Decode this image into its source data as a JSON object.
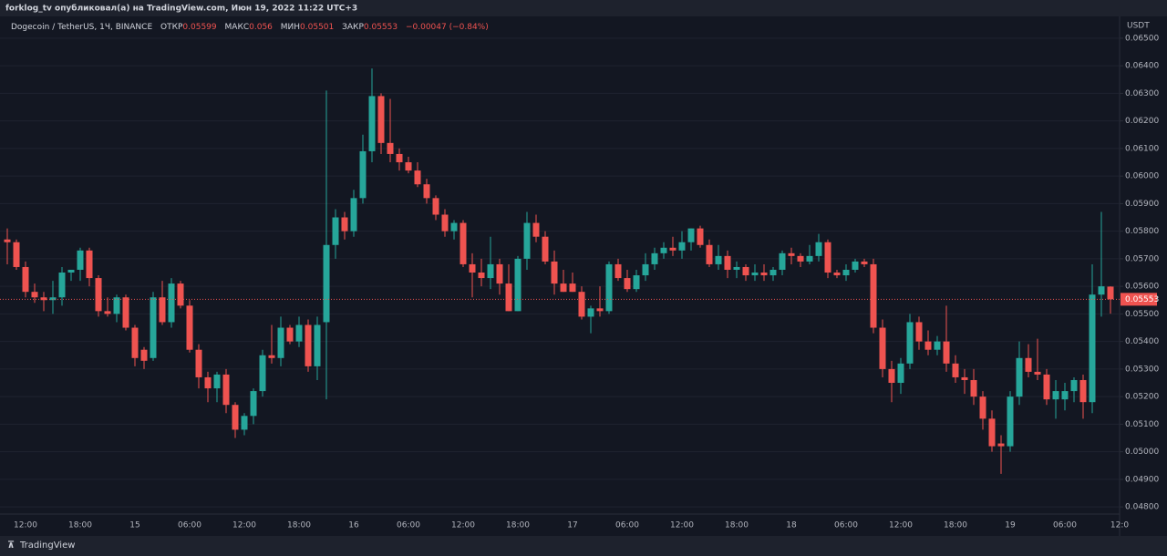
{
  "header": {
    "title": "forklog_tv опубликовал(а) на TradingView.com, Июн 19, 2022 11:22 UTC+3"
  },
  "footer": {
    "brand": "TradingView"
  },
  "chart_data": {
    "type": "candlestick",
    "title": "Dogecoin / TetherUS, 1Ч, BINANCE",
    "legend_labels": {
      "open": "ОТКР",
      "high": "МАКС",
      "low": "МИН",
      "close": "ЗАКР"
    },
    "change": "−0.00047 (−0.84%)",
    "y_unit": "USDT",
    "up_color": "#26a69a",
    "down_color": "#ef5350",
    "grid": true,
    "categories": [
      null,
      null,
      "12:00",
      null,
      null,
      null,
      null,
      null,
      "18:00",
      null,
      null,
      null,
      null,
      null,
      "15",
      null,
      null,
      null,
      null,
      null,
      "06:00",
      null,
      null,
      null,
      null,
      null,
      "12:00",
      null,
      null,
      null,
      null,
      null,
      "18:00",
      null,
      null,
      null,
      null,
      null,
      "16",
      null,
      null,
      null,
      null,
      null,
      "06:00",
      null,
      null,
      null,
      null,
      null,
      "12:00",
      null,
      null,
      null,
      null,
      null,
      "18:00",
      null,
      null,
      null,
      null,
      null,
      "17",
      null,
      null,
      null,
      null,
      null,
      "06:00",
      null,
      null,
      null,
      null,
      null,
      "12:00",
      null,
      null,
      null,
      null,
      null,
      "18:00",
      null,
      null,
      null,
      null,
      null,
      "18",
      null,
      null,
      null,
      null,
      null,
      "06:00",
      null,
      null,
      null,
      null,
      null,
      "12:00",
      null,
      null,
      null,
      null,
      null,
      "18:00",
      null,
      null,
      null,
      null,
      null,
      "19",
      null,
      null,
      null,
      null,
      null,
      "06:00",
      null,
      null,
      null,
      null,
      null,
      "12:0"
    ],
    "open": [
      0.0577,
      0.0576,
      0.0567,
      0.0558,
      0.0556,
      0.0555,
      0.0556,
      0.0565,
      0.0566,
      0.0573,
      0.0563,
      0.0551,
      0.055,
      0.0556,
      0.0545,
      0.0537,
      0.0534,
      0.0556,
      0.0547,
      0.0561,
      0.0553,
      0.0537,
      0.0527,
      0.0523,
      0.0528,
      0.0517,
      0.0508,
      0.0513,
      0.0522,
      0.0535,
      0.0534,
      0.0545,
      0.054,
      0.0546,
      0.0531,
      0.0547,
      0.0575,
      0.0585,
      0.058,
      0.0592,
      0.0609,
      0.0629,
      0.0612,
      0.0608,
      0.0605,
      0.0602,
      0.0597,
      0.0592,
      0.0586,
      0.058,
      0.0583,
      0.0568,
      0.0565,
      0.0563,
      0.0568,
      0.0561,
      0.0551,
      0.057,
      0.0583,
      0.0578,
      0.0569,
      0.0561,
      0.0561,
      0.0558,
      0.0549,
      0.0552,
      0.0551,
      0.0568,
      0.0563,
      0.0559,
      0.0564,
      0.0568,
      0.0572,
      0.0574,
      0.0573,
      0.0576,
      0.0581,
      0.0575,
      0.0568,
      0.0571,
      0.0566,
      0.0567,
      0.0564,
      0.0565,
      0.0564,
      0.0566,
      0.0572,
      0.0571,
      0.0569,
      0.0571,
      0.0576,
      0.0565,
      0.0564,
      0.0566,
      0.0569,
      0.0568,
      0.0545,
      0.053,
      0.0525,
      0.0532,
      0.0547,
      0.054,
      0.0537,
      0.054,
      0.0532,
      0.0527,
      0.0526,
      0.052,
      0.0512,
      0.0503,
      0.0502,
      0.052,
      0.0534,
      0.0529,
      0.0528,
      0.0519,
      0.0519,
      0.0522,
      0.0526,
      0.0518,
      0.0557,
      0.05599,
      null
    ],
    "high": [
      0.0581,
      0.0577,
      0.0569,
      0.0561,
      0.0558,
      0.0562,
      0.0567,
      0.0566,
      0.0574,
      0.0574,
      0.0564,
      0.0556,
      0.0557,
      0.0557,
      0.0546,
      0.0538,
      0.0558,
      0.0562,
      0.0563,
      0.0562,
      0.0555,
      0.0539,
      0.0529,
      0.0529,
      0.053,
      0.0518,
      0.0514,
      0.0523,
      0.0537,
      0.0546,
      0.0549,
      0.0546,
      0.0549,
      0.0548,
      0.0549,
      0.0631,
      0.0588,
      0.0587,
      0.0595,
      0.0615,
      0.0639,
      0.063,
      0.0628,
      0.061,
      0.0607,
      0.0605,
      0.0599,
      0.0593,
      0.0588,
      0.0584,
      0.0584,
      0.0572,
      0.057,
      0.0578,
      0.057,
      0.0568,
      0.0571,
      0.0587,
      0.0586,
      0.058,
      0.0573,
      0.0566,
      0.0565,
      0.056,
      0.0553,
      0.056,
      0.0569,
      0.057,
      0.0566,
      0.0566,
      0.0572,
      0.0574,
      0.0576,
      0.0578,
      0.058,
      0.0581,
      0.0582,
      0.0577,
      0.0575,
      0.0573,
      0.0569,
      0.0568,
      0.0568,
      0.0568,
      0.0567,
      0.0573,
      0.0574,
      0.0572,
      0.0575,
      0.0579,
      0.0577,
      0.0566,
      0.0568,
      0.057,
      0.057,
      0.057,
      0.0548,
      0.0533,
      0.0534,
      0.055,
      0.0549,
      0.0544,
      0.0542,
      0.0553,
      0.0535,
      0.053,
      0.053,
      0.0522,
      0.0515,
      0.0506,
      0.0522,
      0.054,
      0.0539,
      0.0541,
      0.053,
      0.0526,
      0.0525,
      0.0527,
      0.0528,
      0.0568,
      0.0587,
      0.056,
      null
    ],
    "low": [
      0.0568,
      0.0566,
      0.0556,
      0.0554,
      0.0551,
      0.055,
      0.0553,
      0.0562,
      0.0562,
      0.056,
      0.0549,
      0.0549,
      0.0547,
      0.0544,
      0.0531,
      0.053,
      0.0533,
      0.0546,
      0.0545,
      0.0552,
      0.0536,
      0.0523,
      0.0518,
      0.0518,
      0.0514,
      0.0505,
      0.0506,
      0.051,
      0.052,
      0.0532,
      0.0531,
      0.0539,
      0.0538,
      0.0529,
      0.0526,
      0.0519,
      0.057,
      0.0577,
      0.0578,
      0.059,
      0.0605,
      0.0608,
      0.0605,
      0.0602,
      0.0601,
      0.0596,
      0.059,
      0.0584,
      0.0578,
      0.0577,
      0.0567,
      0.0556,
      0.056,
      0.0559,
      0.0557,
      0.0551,
      0.0551,
      0.0566,
      0.0576,
      0.0568,
      0.0557,
      0.0558,
      0.0558,
      0.0548,
      0.0543,
      0.0549,
      0.055,
      0.0562,
      0.0558,
      0.0558,
      0.0562,
      0.0566,
      0.057,
      0.0571,
      0.057,
      0.0573,
      0.0574,
      0.0567,
      0.0566,
      0.0563,
      0.0563,
      0.0562,
      0.0562,
      0.0562,
      0.0562,
      0.0564,
      0.0568,
      0.0567,
      0.0568,
      0.0569,
      0.0563,
      0.0563,
      0.0562,
      0.0565,
      0.0567,
      0.0543,
      0.0527,
      0.0518,
      0.0521,
      0.053,
      0.0537,
      0.0535,
      0.0535,
      0.0529,
      0.0525,
      0.0521,
      0.0517,
      0.0508,
      0.05,
      0.0492,
      0.05,
      0.0517,
      0.0527,
      0.0526,
      0.0517,
      0.0512,
      0.0515,
      0.0518,
      0.0512,
      0.0514,
      0.0549,
      0.05501,
      null
    ],
    "close": [
      0.0576,
      0.0567,
      0.0558,
      0.0556,
      0.0555,
      0.0556,
      0.0565,
      0.0566,
      0.0573,
      0.0563,
      0.0551,
      0.055,
      0.0556,
      0.0545,
      0.0534,
      0.0533,
      0.0556,
      0.0547,
      0.0561,
      0.0553,
      0.0537,
      0.0527,
      0.0523,
      0.0528,
      0.0517,
      0.0508,
      0.0513,
      0.0522,
      0.0535,
      0.0534,
      0.0545,
      0.054,
      0.0546,
      0.0531,
      0.0546,
      0.0575,
      0.0585,
      0.058,
      0.0592,
      0.0609,
      0.0629,
      0.0612,
      0.0608,
      0.0605,
      0.0602,
      0.0597,
      0.0592,
      0.0586,
      0.058,
      0.0583,
      0.0568,
      0.0565,
      0.0563,
      0.0568,
      0.0561,
      0.0551,
      0.057,
      0.0583,
      0.0578,
      0.0569,
      0.0561,
      0.0558,
      0.0558,
      0.0549,
      0.0552,
      0.0551,
      0.0568,
      0.0563,
      0.0559,
      0.0564,
      0.0568,
      0.0572,
      0.0574,
      0.0573,
      0.0576,
      0.0581,
      0.0575,
      0.0568,
      0.0571,
      0.0566,
      0.0567,
      0.0564,
      0.0565,
      0.0564,
      0.0566,
      0.0572,
      0.0571,
      0.0569,
      0.0571,
      0.0576,
      0.0565,
      0.0564,
      0.0566,
      0.0569,
      0.0568,
      0.0545,
      0.053,
      0.0525,
      0.0532,
      0.0547,
      0.054,
      0.0537,
      0.054,
      0.0532,
      0.0527,
      0.0526,
      0.052,
      0.0512,
      0.0502,
      0.0502,
      0.052,
      0.0534,
      0.0529,
      0.0528,
      0.0519,
      0.0522,
      0.0522,
      0.0526,
      0.0518,
      0.0557,
      0.056,
      0.05553,
      null
    ],
    "ylim": [
      0.04774,
      0.06579
    ],
    "yticks": [
      {
        "value": 0.048,
        "label": "0.04800"
      },
      {
        "value": 0.049,
        "label": "0.04900"
      },
      {
        "value": 0.05,
        "label": "0.05000"
      },
      {
        "value": 0.051,
        "label": "0.05100"
      },
      {
        "value": 0.052,
        "label": "0.05200"
      },
      {
        "value": 0.053,
        "label": "0.05300"
      },
      {
        "value": 0.054,
        "label": "0.05400"
      },
      {
        "value": 0.055,
        "label": "0.05500"
      },
      {
        "value": 0.056,
        "label": "0.05600"
      },
      {
        "value": 0.057,
        "label": "0.05700"
      },
      {
        "value": 0.058,
        "label": "0.05800"
      },
      {
        "value": 0.059,
        "label": "0.05900"
      },
      {
        "value": 0.06,
        "label": "0.06000"
      },
      {
        "value": 0.061,
        "label": "0.06100"
      },
      {
        "value": 0.062,
        "label": "0.06200"
      },
      {
        "value": 0.063,
        "label": "0.06300"
      },
      {
        "value": 0.064,
        "label": "0.06400"
      },
      {
        "value": 0.065,
        "label": "0.06500"
      }
    ]
  }
}
